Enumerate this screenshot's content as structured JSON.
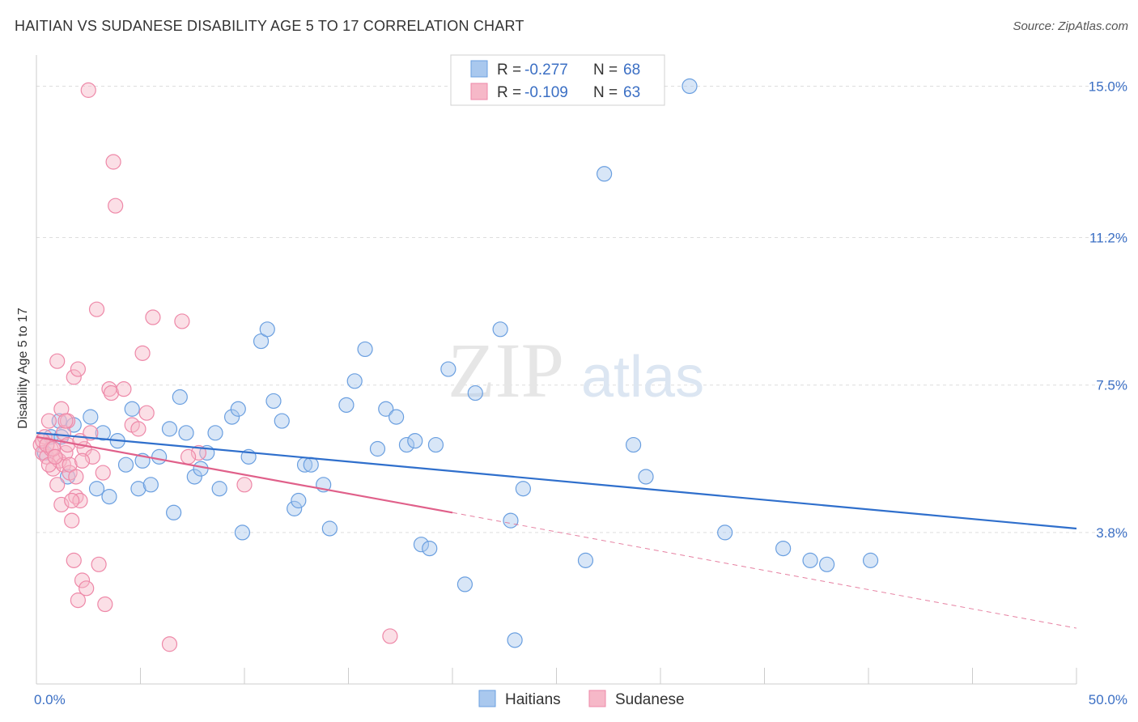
{
  "title": "HAITIAN VS SUDANESE DISABILITY AGE 5 TO 17 CORRELATION CHART",
  "source": "Source: ZipAtlas.com",
  "watermark": {
    "zip": "ZIP",
    "atlas": "atlas"
  },
  "legend": {
    "rows": [
      {
        "r_label": "R = ",
        "r_value": "-0.277",
        "n_label": "N = ",
        "n_value": "68",
        "color": "#a9c8ee"
      },
      {
        "r_label": "R = ",
        "r_value": "-0.109",
        "n_label": "N = ",
        "n_value": "63",
        "color": "#f6b8c8"
      }
    ]
  },
  "chart_data": {
    "type": "scatter",
    "title": "HAITIAN VS SUDANESE DISABILITY AGE 5 TO 17 CORRELATION CHART",
    "xlabel": "",
    "ylabel": "Disability Age 5 to 17",
    "xlim": [
      0,
      50
    ],
    "ylim": [
      0,
      15.7
    ],
    "x_tick_labels": [
      {
        "value": 0,
        "label": "0.0%"
      },
      {
        "value": 50,
        "label": "50.0%"
      }
    ],
    "y_ticks": [
      {
        "value": 3.8,
        "label": "3.8%"
      },
      {
        "value": 7.5,
        "label": "7.5%"
      },
      {
        "value": 11.2,
        "label": "11.2%"
      },
      {
        "value": 15.0,
        "label": "15.0%"
      }
    ],
    "grid": true,
    "legend_position": "top-center",
    "series": [
      {
        "name": "Haitians",
        "color": "#6a9fe0",
        "fill": "#a9c8ee",
        "trend": {
          "x0": 0,
          "y0": 6.3,
          "x1": 50,
          "y1": 3.9,
          "color": "#2f6fcc"
        },
        "points": [
          [
            0.7,
            6.2
          ],
          [
            1.1,
            6.6
          ],
          [
            1.2,
            6.2
          ],
          [
            1.5,
            5.2
          ],
          [
            1.8,
            6.5
          ],
          [
            2.6,
            6.7
          ],
          [
            2.9,
            4.9
          ],
          [
            3.2,
            6.3
          ],
          [
            3.5,
            4.7
          ],
          [
            3.9,
            6.1
          ],
          [
            4.3,
            5.5
          ],
          [
            4.6,
            6.9
          ],
          [
            4.9,
            4.9
          ],
          [
            5.1,
            5.6
          ],
          [
            5.5,
            5.0
          ],
          [
            5.9,
            5.7
          ],
          [
            6.4,
            6.4
          ],
          [
            6.6,
            4.3
          ],
          [
            6.9,
            7.2
          ],
          [
            7.2,
            6.3
          ],
          [
            7.6,
            5.2
          ],
          [
            7.9,
            5.4
          ],
          [
            8.2,
            5.8
          ],
          [
            8.6,
            6.3
          ],
          [
            8.8,
            4.9
          ],
          [
            9.4,
            6.7
          ],
          [
            9.7,
            6.9
          ],
          [
            9.9,
            3.8
          ],
          [
            10.2,
            5.7
          ],
          [
            10.8,
            8.6
          ],
          [
            11.1,
            8.9
          ],
          [
            11.4,
            7.1
          ],
          [
            11.8,
            6.6
          ],
          [
            12.4,
            4.4
          ],
          [
            12.6,
            4.6
          ],
          [
            12.9,
            5.5
          ],
          [
            13.2,
            5.5
          ],
          [
            13.8,
            5.0
          ],
          [
            14.1,
            3.9
          ],
          [
            14.9,
            7.0
          ],
          [
            15.3,
            7.6
          ],
          [
            15.8,
            8.4
          ],
          [
            16.4,
            5.9
          ],
          [
            16.8,
            6.9
          ],
          [
            17.3,
            6.7
          ],
          [
            17.8,
            6.0
          ],
          [
            18.2,
            6.1
          ],
          [
            18.5,
            3.5
          ],
          [
            18.9,
            3.4
          ],
          [
            19.2,
            6.0
          ],
          [
            19.8,
            7.9
          ],
          [
            20.6,
            2.5
          ],
          [
            21.1,
            7.3
          ],
          [
            22.3,
            8.9
          ],
          [
            22.8,
            4.1
          ],
          [
            23.0,
            1.1
          ],
          [
            23.4,
            4.9
          ],
          [
            26.4,
            3.1
          ],
          [
            27.3,
            12.8
          ],
          [
            28.7,
            6.0
          ],
          [
            29.3,
            5.2
          ],
          [
            31.4,
            15.0
          ],
          [
            33.1,
            3.8
          ],
          [
            35.9,
            3.4
          ],
          [
            37.2,
            3.1
          ],
          [
            38.0,
            3.0
          ],
          [
            40.1,
            3.1
          ],
          [
            0.4,
            5.8
          ]
        ]
      },
      {
        "name": "Sudanese",
        "color": "#ee88a8",
        "fill": "#f6b8c8",
        "trend": {
          "x0": 0,
          "y0": 6.2,
          "x1": 20,
          "y1": 4.3,
          "dash_to_x": 50,
          "dash_to_y": 1.4,
          "color": "#e0608a"
        },
        "points": [
          [
            0.2,
            6.0
          ],
          [
            0.3,
            5.8
          ],
          [
            0.4,
            6.2
          ],
          [
            0.5,
            5.7
          ],
          [
            0.6,
            6.6
          ],
          [
            0.7,
            5.9
          ],
          [
            0.8,
            5.4
          ],
          [
            0.9,
            5.7
          ],
          [
            1.0,
            5.0
          ],
          [
            1.1,
            5.6
          ],
          [
            1.2,
            6.9
          ],
          [
            1.3,
            5.5
          ],
          [
            1.4,
            5.8
          ],
          [
            1.5,
            6.6
          ],
          [
            1.6,
            5.3
          ],
          [
            1.7,
            4.1
          ],
          [
            1.8,
            3.1
          ],
          [
            1.9,
            4.7
          ],
          [
            2.0,
            2.1
          ],
          [
            2.1,
            4.6
          ],
          [
            2.2,
            2.6
          ],
          [
            2.3,
            5.9
          ],
          [
            2.4,
            2.4
          ],
          [
            2.5,
            14.9
          ],
          [
            2.7,
            5.7
          ],
          [
            2.9,
            9.4
          ],
          [
            3.0,
            3.0
          ],
          [
            3.2,
            5.3
          ],
          [
            3.3,
            2.0
          ],
          [
            3.5,
            7.4
          ],
          [
            3.6,
            7.3
          ],
          [
            3.7,
            13.1
          ],
          [
            3.8,
            12.0
          ],
          [
            4.2,
            7.4
          ],
          [
            4.6,
            6.5
          ],
          [
            5.1,
            8.3
          ],
          [
            5.3,
            6.8
          ],
          [
            5.6,
            9.2
          ],
          [
            6.4,
            1.0
          ],
          [
            7.0,
            9.1
          ],
          [
            7.8,
            5.8
          ],
          [
            7.3,
            5.7
          ],
          [
            0.3,
            6.1
          ],
          [
            0.5,
            6.0
          ],
          [
            0.6,
            5.5
          ],
          [
            0.8,
            5.9
          ],
          [
            0.9,
            5.7
          ],
          [
            1.0,
            8.1
          ],
          [
            1.2,
            4.5
          ],
          [
            1.3,
            6.3
          ],
          [
            1.4,
            6.6
          ],
          [
            1.5,
            6.0
          ],
          [
            1.6,
            5.5
          ],
          [
            1.7,
            4.6
          ],
          [
            1.8,
            7.7
          ],
          [
            1.9,
            5.2
          ],
          [
            2.0,
            7.9
          ],
          [
            2.1,
            6.1
          ],
          [
            2.2,
            5.6
          ],
          [
            2.6,
            6.3
          ],
          [
            4.9,
            6.4
          ],
          [
            10.0,
            5.0
          ],
          [
            17.0,
            1.2
          ]
        ]
      }
    ]
  },
  "bottom_legend": [
    {
      "label": "Haitians",
      "color": "#a9c8ee",
      "stroke": "#6a9fe0"
    },
    {
      "label": "Sudanese",
      "color": "#f6b8c8",
      "stroke": "#ee88a8"
    }
  ]
}
